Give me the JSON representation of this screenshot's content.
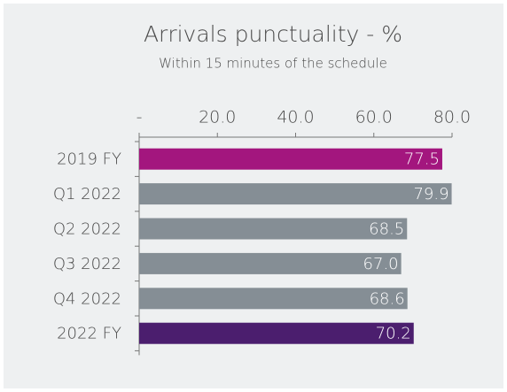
{
  "chart_data": {
    "type": "barh",
    "title": "Arrivals punctuality - %",
    "subtitle": "Within 15 minutes of the schedule",
    "categories": [
      "2019 FY",
      "Q1 2022",
      "Q2 2022",
      "Q3 2022",
      "Q4 2022",
      "2022 FY"
    ],
    "values": [
      77.5,
      79.9,
      68.5,
      67.0,
      68.6,
      70.2
    ],
    "value_labels": [
      "77.5",
      "79.9",
      "68.5",
      "67.0",
      "68.6",
      "70.2"
    ],
    "colors": [
      "#a3167e",
      "#858e95",
      "#858e95",
      "#858e95",
      "#858e95",
      "#4b1e6e"
    ],
    "xlim": [
      0,
      80
    ],
    "xticks": [
      {
        "value": 0,
        "label": "-"
      },
      {
        "value": 20,
        "label": "20.0"
      },
      {
        "value": 40,
        "label": "40.0"
      },
      {
        "value": 60,
        "label": "60.0"
      },
      {
        "value": 80,
        "label": "80.0"
      }
    ]
  }
}
